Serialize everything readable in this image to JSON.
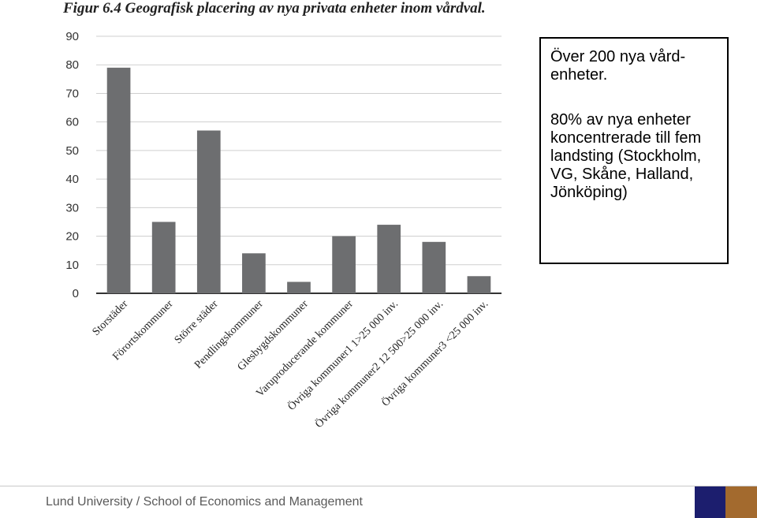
{
  "chart_data": {
    "type": "bar",
    "title": "Figur 6.4 Geografisk placering av nya privata enheter inom vårdval.",
    "xlabel": "",
    "ylabel": "",
    "ylim": [
      0,
      90
    ],
    "yticks": [
      0,
      10,
      20,
      30,
      40,
      50,
      60,
      70,
      80,
      90
    ],
    "grid": true,
    "legend": "none",
    "bar_color": "#6d6e70",
    "categories": [
      "Storstäder",
      "Förortskommuner",
      "Större städer",
      "Pendlingskommuner",
      "Glesbygdskommuner",
      "Varuproducerande kommuner",
      "Övriga kommuner1 1>25 000 inv.",
      "Övriga kommuner2 12 500>25 000 inv.",
      "Övriga kommuner3 <25 000 inv."
    ],
    "values": [
      79,
      25,
      57,
      14,
      4,
      20,
      24,
      18,
      6
    ]
  },
  "callout": {
    "line1": "Över 200 nya vård-enheter.",
    "line2": "80% av nya enheter koncentrerade till fem landsting (Stockholm, VG, Skåne, Halland, Jönköping)"
  },
  "footer": {
    "text": "Lund University / School of Economics and Management"
  },
  "brand_colors": {
    "blue": "#1c1e6e",
    "gold": "#a36a2e"
  }
}
